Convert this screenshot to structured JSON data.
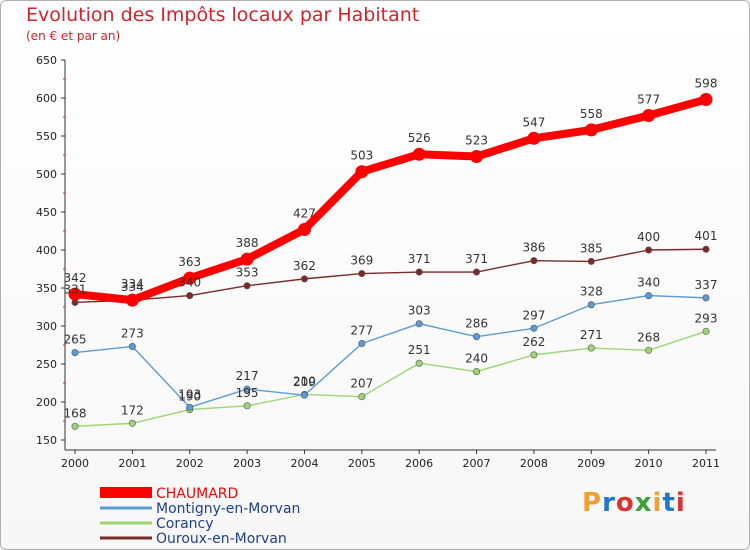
{
  "title": "Evolution des Impôts locaux par Habitant",
  "subtitle": "(en € et par an)",
  "logo_text": "Proxiti",
  "chart_data": {
    "type": "line",
    "title": "Evolution des Impôts locaux par Habitant",
    "subtitle": "(en € et par an)",
    "x": [
      "2000",
      "2001",
      "2002",
      "2003",
      "2004",
      "2005",
      "2006",
      "2007",
      "2008",
      "2009",
      "2010",
      "2011"
    ],
    "ylim": [
      150,
      650
    ],
    "yticks": [
      150,
      200,
      250,
      300,
      350,
      400,
      450,
      500,
      550,
      600,
      650
    ],
    "grid": false,
    "legend_position": "bottom-left",
    "series": [
      {
        "name": "CHAUMARD",
        "color": "#ff0000",
        "values": [
          342,
          334,
          363,
          388,
          427,
          503,
          526,
          523,
          547,
          558,
          577,
          598
        ]
      },
      {
        "name": "Montigny-en-Morvan",
        "color": "#5b9bd5",
        "values": [
          265,
          273,
          193,
          217,
          209,
          277,
          303,
          286,
          297,
          328,
          340,
          337
        ]
      },
      {
        "name": "Corancy",
        "color": "#9bd672",
        "values": [
          168,
          172,
          190,
          195,
          210,
          207,
          251,
          240,
          262,
          271,
          268,
          293
        ]
      },
      {
        "name": "Ouroux-en-Morvan",
        "color": "#7b2a2a",
        "values": [
          331,
          334,
          340,
          353,
          362,
          369,
          371,
          371,
          386,
          385,
          400,
          401
        ]
      }
    ]
  }
}
